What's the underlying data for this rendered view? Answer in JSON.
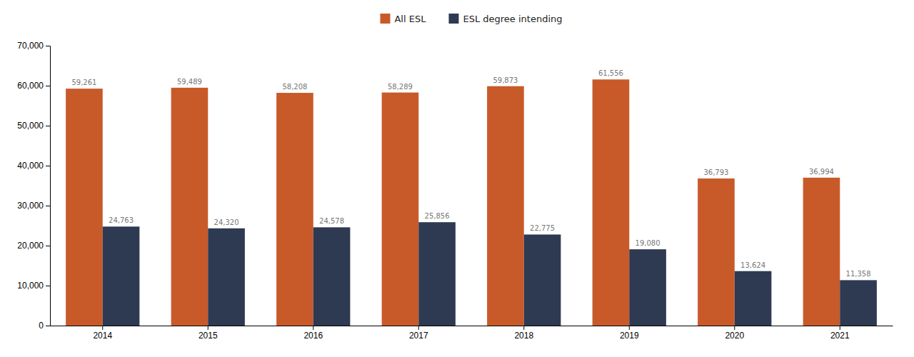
{
  "chart_data": {
    "type": "bar",
    "categories": [
      "2014",
      "2015",
      "2016",
      "2017",
      "2018",
      "2019",
      "2020",
      "2021"
    ],
    "series": [
      {
        "name": "All ESL",
        "color": "#C85A2A",
        "values": [
          59261,
          59489,
          58208,
          58289,
          59873,
          61556,
          36793,
          36994
        ],
        "value_labels": [
          "59,261",
          "59,489",
          "58,208",
          "58,289",
          "59,873",
          "61,556",
          "36,793",
          "36,994"
        ]
      },
      {
        "name": "ESL degree intending",
        "color": "#2E3A52",
        "values": [
          24763,
          24320,
          24578,
          25856,
          22775,
          19080,
          13624,
          11358
        ],
        "value_labels": [
          "24,763",
          "24,320",
          "24,578",
          "25,856",
          "22,775",
          "19,080",
          "13,624",
          "11,358"
        ]
      }
    ],
    "ylim": [
      0,
      70000
    ],
    "yticks": [
      0,
      {
        "value": 10000,
        "label": "10,000"
      },
      {
        "value": 20000,
        "label": "20,000"
      },
      {
        "value": 30000,
        "label": "30,000"
      },
      {
        "value": 40000,
        "label": "40,000"
      },
      {
        "value": 50000,
        "label": "50,000"
      },
      {
        "value": 60000,
        "label": "60,000"
      },
      {
        "value": 70000,
        "label": "70,000"
      }
    ],
    "grid": false,
    "legend": "top",
    "data_labels": true
  }
}
